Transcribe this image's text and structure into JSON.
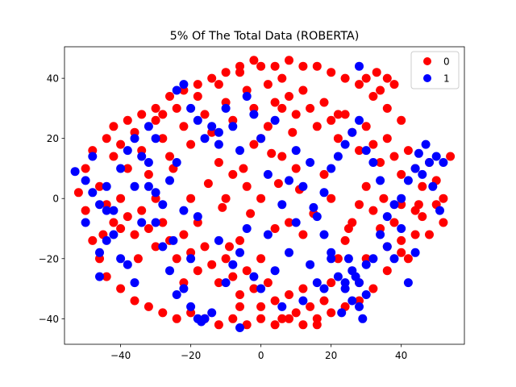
{
  "chart_data": {
    "type": "scatter",
    "title": "5% Of The Total Data (ROBERTA)",
    "xlabel": "",
    "ylabel": "",
    "xlim": [
      -56,
      58
    ],
    "ylim": [
      -48.5,
      50.5
    ],
    "xticks": [
      -40,
      -20,
      0,
      20,
      40
    ],
    "yticks": [
      -40,
      -20,
      0,
      20,
      40
    ],
    "grid": false,
    "legend_position": "top-right",
    "colors": {
      "0": "#ff0000",
      "1": "#0000ff"
    },
    "series": [
      {
        "name": "0",
        "color": "#ff0000",
        "points": [
          [
            -44,
            20
          ],
          [
            -42,
            14
          ],
          [
            -40,
            18
          ],
          [
            -38,
            10
          ],
          [
            -36,
            22
          ],
          [
            -34,
            16
          ],
          [
            -32,
            8
          ],
          [
            -30,
            26
          ],
          [
            -28,
            20
          ],
          [
            -26,
            14
          ],
          [
            -24,
            30
          ],
          [
            -22,
            24
          ],
          [
            -20,
            18
          ],
          [
            -18,
            34
          ],
          [
            -16,
            28
          ],
          [
            -14,
            22
          ],
          [
            -12,
            38
          ],
          [
            -10,
            32
          ],
          [
            -8,
            26
          ],
          [
            -6,
            42
          ],
          [
            -4,
            36
          ],
          [
            -2,
            30
          ],
          [
            0,
            44
          ],
          [
            2,
            38
          ],
          [
            4,
            32
          ],
          [
            6,
            40
          ],
          [
            8,
            34
          ],
          [
            10,
            28
          ],
          [
            12,
            36
          ],
          [
            14,
            30
          ],
          [
            16,
            24
          ],
          [
            18,
            32
          ],
          [
            20,
            26
          ],
          [
            22,
            20
          ],
          [
            24,
            28
          ],
          [
            26,
            22
          ],
          [
            28,
            16
          ],
          [
            30,
            24
          ],
          [
            32,
            18
          ],
          [
            34,
            12
          ],
          [
            36,
            20
          ],
          [
            38,
            14
          ],
          [
            40,
            8
          ],
          [
            42,
            16
          ],
          [
            44,
            10
          ],
          [
            46,
            4
          ],
          [
            48,
            12
          ],
          [
            50,
            6
          ],
          [
            52,
            0
          ],
          [
            -46,
            4
          ],
          [
            -44,
            -2
          ],
          [
            -42,
            -8
          ],
          [
            -40,
            0
          ],
          [
            -38,
            -6
          ],
          [
            -36,
            -12
          ],
          [
            -34,
            -4
          ],
          [
            -32,
            -10
          ],
          [
            -30,
            -16
          ],
          [
            -28,
            -8
          ],
          [
            -26,
            -14
          ],
          [
            -24,
            -20
          ],
          [
            -22,
            -12
          ],
          [
            -20,
            -18
          ],
          [
            -18,
            -24
          ],
          [
            -16,
            -16
          ],
          [
            -14,
            -22
          ],
          [
            -12,
            -28
          ],
          [
            -10,
            -20
          ],
          [
            -8,
            -26
          ],
          [
            -6,
            -32
          ],
          [
            -4,
            -24
          ],
          [
            -2,
            -30
          ],
          [
            0,
            -36
          ],
          [
            2,
            -28
          ],
          [
            4,
            -34
          ],
          [
            6,
            -40
          ],
          [
            8,
            -32
          ],
          [
            10,
            -38
          ],
          [
            12,
            -30
          ],
          [
            14,
            -36
          ],
          [
            16,
            -42
          ],
          [
            18,
            -34
          ],
          [
            20,
            -28
          ],
          [
            22,
            -20
          ],
          [
            24,
            -14
          ],
          [
            26,
            -8
          ],
          [
            28,
            -2
          ],
          [
            30,
            4
          ],
          [
            32,
            -4
          ],
          [
            34,
            -10
          ],
          [
            36,
            -16
          ],
          [
            38,
            -8
          ],
          [
            40,
            -14
          ],
          [
            42,
            -20
          ],
          [
            44,
            -12
          ],
          [
            46,
            -6
          ],
          [
            48,
            -12
          ],
          [
            50,
            -2
          ],
          [
            -50,
            10
          ],
          [
            -48,
            -14
          ],
          [
            -46,
            -20
          ],
          [
            -44,
            -26
          ],
          [
            -40,
            -30
          ],
          [
            -36,
            -34
          ],
          [
            -32,
            -36
          ],
          [
            -28,
            -38
          ],
          [
            -24,
            -40
          ],
          [
            -20,
            -38
          ],
          [
            -16,
            -40
          ],
          [
            -12,
            -42
          ],
          [
            -8,
            -40
          ],
          [
            -4,
            -42
          ],
          [
            0,
            -40
          ],
          [
            4,
            -42
          ],
          [
            8,
            -40
          ],
          [
            12,
            -42
          ],
          [
            16,
            -40
          ],
          [
            20,
            -38
          ],
          [
            24,
            -36
          ],
          [
            28,
            -34
          ],
          [
            32,
            -30
          ],
          [
            36,
            -24
          ],
          [
            40,
            -18
          ],
          [
            44,
            -4
          ],
          [
            40,
            26
          ],
          [
            36,
            30
          ],
          [
            32,
            34
          ],
          [
            28,
            38
          ],
          [
            24,
            40
          ],
          [
            20,
            42
          ],
          [
            16,
            44
          ],
          [
            12,
            44
          ],
          [
            8,
            46
          ],
          [
            4,
            44
          ],
          [
            -2,
            46
          ],
          [
            -6,
            44
          ],
          [
            -10,
            42
          ],
          [
            -14,
            40
          ],
          [
            -18,
            38
          ],
          [
            -22,
            36
          ],
          [
            -26,
            34
          ],
          [
            -30,
            30
          ],
          [
            -34,
            28
          ],
          [
            -38,
            26
          ],
          [
            -42,
            24
          ],
          [
            -5,
            10
          ],
          [
            0,
            0
          ],
          [
            5,
            5
          ],
          [
            -3,
            -5
          ],
          [
            3,
            15
          ],
          [
            -8,
            8
          ],
          [
            8,
            -8
          ],
          [
            -10,
            0
          ],
          [
            10,
            10
          ],
          [
            0,
            20
          ],
          [
            0,
            -20
          ],
          [
            -15,
            5
          ],
          [
            15,
            -5
          ],
          [
            -20,
            0
          ],
          [
            20,
            0
          ],
          [
            -25,
            10
          ],
          [
            25,
            -10
          ],
          [
            -30,
            0
          ],
          [
            30,
            -20
          ],
          [
            -35,
            -20
          ],
          [
            35,
            0
          ],
          [
            -40,
            -10
          ],
          [
            40,
            -2
          ],
          [
            -45,
            -12
          ],
          [
            45,
            -2
          ],
          [
            -12,
            12
          ],
          [
            12,
            -12
          ],
          [
            -18,
            -8
          ],
          [
            18,
            8
          ],
          [
            -6,
            -14
          ],
          [
            6,
            14
          ],
          [
            -22,
            -28
          ],
          [
            22,
            28
          ],
          [
            -28,
            28
          ],
          [
            28,
            -28
          ],
          [
            33,
            42
          ],
          [
            36,
            40
          ],
          [
            38,
            38
          ],
          [
            34,
            36
          ],
          [
            30,
            40
          ],
          [
            54,
            14
          ],
          [
            52,
            -8
          ],
          [
            -52,
            2
          ],
          [
            -50,
            -4
          ],
          [
            -48,
            16
          ],
          [
            2,
            24
          ],
          [
            -2,
            18
          ],
          [
            4,
            -10
          ],
          [
            -4,
            4
          ],
          [
            6,
            30
          ],
          [
            -6,
            -36
          ],
          [
            9,
            22
          ],
          [
            -9,
            -16
          ],
          [
            11,
            3
          ],
          [
            -11,
            -3
          ]
        ]
      },
      {
        "name": "1",
        "color": "#0000ff",
        "points": [
          [
            -53,
            9
          ],
          [
            -50,
            -8
          ],
          [
            -48,
            14
          ],
          [
            -46,
            -2
          ],
          [
            -44,
            4
          ],
          [
            -42,
            -4
          ],
          [
            -40,
            10
          ],
          [
            -38,
            16
          ],
          [
            -36,
            4
          ],
          [
            -34,
            -8
          ],
          [
            -32,
            12
          ],
          [
            -30,
            20
          ],
          [
            -28,
            -16
          ],
          [
            -26,
            -24
          ],
          [
            -24,
            -32
          ],
          [
            -22,
            -4
          ],
          [
            -20,
            -20
          ],
          [
            -18,
            -6
          ],
          [
            -16,
            -40
          ],
          [
            -14,
            -38
          ],
          [
            -12,
            -14
          ],
          [
            -10,
            -28
          ],
          [
            -8,
            -22
          ],
          [
            -6,
            -18
          ],
          [
            -4,
            -10
          ],
          [
            -2,
            -26
          ],
          [
            0,
            -30
          ],
          [
            2,
            -12
          ],
          [
            4,
            -24
          ],
          [
            6,
            -36
          ],
          [
            8,
            -18
          ],
          [
            10,
            -8
          ],
          [
            12,
            -34
          ],
          [
            14,
            -22
          ],
          [
            16,
            -28
          ],
          [
            18,
            -30
          ],
          [
            20,
            -18
          ],
          [
            22,
            -26
          ],
          [
            24,
            -30
          ],
          [
            26,
            -24
          ],
          [
            28,
            -28
          ],
          [
            30,
            -22
          ],
          [
            32,
            -20
          ],
          [
            34,
            -12
          ],
          [
            36,
            -6
          ],
          [
            38,
            -2
          ],
          [
            40,
            0
          ],
          [
            42,
            6
          ],
          [
            44,
            10
          ],
          [
            46,
            8
          ],
          [
            48,
            12
          ],
          [
            50,
            14
          ],
          [
            52,
            12
          ],
          [
            -30,
            -8
          ],
          [
            -25,
            -14
          ],
          [
            -20,
            30
          ],
          [
            -18,
            26
          ],
          [
            -16,
            20
          ],
          [
            -14,
            24
          ],
          [
            -12,
            18
          ],
          [
            -10,
            30
          ],
          [
            -8,
            24
          ],
          [
            -6,
            16
          ],
          [
            -4,
            34
          ],
          [
            -2,
            28
          ],
          [
            0,
            20
          ],
          [
            2,
            8
          ],
          [
            4,
            26
          ],
          [
            6,
            -2
          ],
          [
            8,
            6
          ],
          [
            10,
            16
          ],
          [
            12,
            4
          ],
          [
            14,
            12
          ],
          [
            16,
            -6
          ],
          [
            18,
            2
          ],
          [
            20,
            10
          ],
          [
            22,
            14
          ],
          [
            24,
            18
          ],
          [
            26,
            22
          ],
          [
            28,
            26
          ],
          [
            30,
            16
          ],
          [
            32,
            12
          ],
          [
            34,
            6
          ],
          [
            36,
            -16
          ],
          [
            38,
            -20
          ],
          [
            40,
            -10
          ],
          [
            -36,
            20
          ],
          [
            -34,
            14
          ],
          [
            -32,
            24
          ],
          [
            -38,
            -22
          ],
          [
            -40,
            -20
          ],
          [
            -44,
            -14
          ],
          [
            -46,
            -18
          ],
          [
            -42,
            -12
          ],
          [
            -36,
            -28
          ],
          [
            -20,
            -36
          ],
          [
            -18,
            -40
          ],
          [
            -17,
            -41
          ],
          [
            -22,
            -30
          ],
          [
            24,
            -28
          ],
          [
            26,
            -34
          ],
          [
            28,
            -36
          ],
          [
            30,
            -32
          ],
          [
            25,
            -20
          ],
          [
            27,
            -26
          ],
          [
            23,
            -38
          ],
          [
            29,
            -40
          ],
          [
            -6,
            -43
          ],
          [
            20,
            -20
          ],
          [
            18,
            -12
          ],
          [
            28,
            44
          ],
          [
            -22,
            38
          ],
          [
            -24,
            36
          ],
          [
            -12,
            22
          ],
          [
            15,
            -3
          ],
          [
            -28,
            -2
          ],
          [
            -26,
            6
          ],
          [
            -30,
            2
          ],
          [
            -24,
            12
          ],
          [
            -32,
            4
          ],
          [
            45,
            15
          ],
          [
            47,
            18
          ],
          [
            49,
            4
          ],
          [
            51,
            -4
          ],
          [
            42,
            -28
          ],
          [
            44,
            -18
          ],
          [
            -46,
            -26
          ],
          [
            -44,
            -4
          ],
          [
            -48,
            2
          ],
          [
            -50,
            6
          ]
        ]
      }
    ]
  }
}
